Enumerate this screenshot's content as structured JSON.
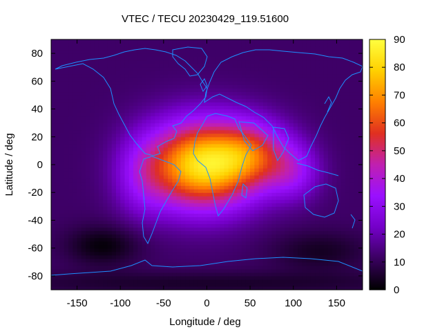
{
  "chart_data": {
    "type": "heatmap",
    "title": "VTEC / TECU 20230429_119.51600",
    "xlabel": "Longitude / deg",
    "ylabel": "Latitude / deg",
    "xlim": [
      -180,
      180
    ],
    "ylim": [
      -90,
      90
    ],
    "xticks": [
      -150,
      -100,
      -50,
      0,
      50,
      100,
      150
    ],
    "yticks": [
      -80,
      -60,
      -40,
      -20,
      0,
      20,
      40,
      60,
      80
    ],
    "colorbar": {
      "range": [
        0,
        90
      ],
      "ticks": [
        0,
        10,
        20,
        30,
        40,
        50,
        60,
        70,
        80,
        90
      ],
      "palette": [
        "#000000",
        "#3a0060",
        "#7400c8",
        "#9a10ff",
        "#c020b0",
        "#e03020",
        "#ff8000",
        "#ffd000",
        "#ffff40"
      ]
    },
    "grid_resolution": {
      "lon_step_deg": 5,
      "lat_step_deg": 2.5
    },
    "field_model": {
      "background_tecu": 12,
      "peaks": [
        {
          "lon": -5,
          "lat": 0,
          "amp_tecu": 71,
          "sigma_lon_deg": 45,
          "sigma_lat_deg": 22
        },
        {
          "lon": 55,
          "lat": 8,
          "amp_tecu": 28,
          "sigma_lon_deg": 30,
          "sigma_lat_deg": 16
        },
        {
          "lon": 100,
          "lat": -5,
          "amp_tecu": 18,
          "sigma_lon_deg": 22,
          "sigma_lat_deg": 14
        },
        {
          "lon": -75,
          "lat": -10,
          "amp_tecu": 12,
          "sigma_lon_deg": 22,
          "sigma_lat_deg": 20
        }
      ],
      "lows": [
        {
          "lon": -120,
          "lat": -58,
          "depth_tecu": 11,
          "sigma_lon_deg": 30,
          "sigma_lat_deg": 10
        },
        {
          "lon": 130,
          "lat": -62,
          "depth_tecu": 8,
          "sigma_lon_deg": 40,
          "sigma_lat_deg": 10
        },
        {
          "lon": 0,
          "lat": -85,
          "depth_tecu": 7,
          "sigma_lon_deg": 200,
          "sigma_lat_deg": 6
        }
      ]
    },
    "overlay": "coastlines"
  }
}
